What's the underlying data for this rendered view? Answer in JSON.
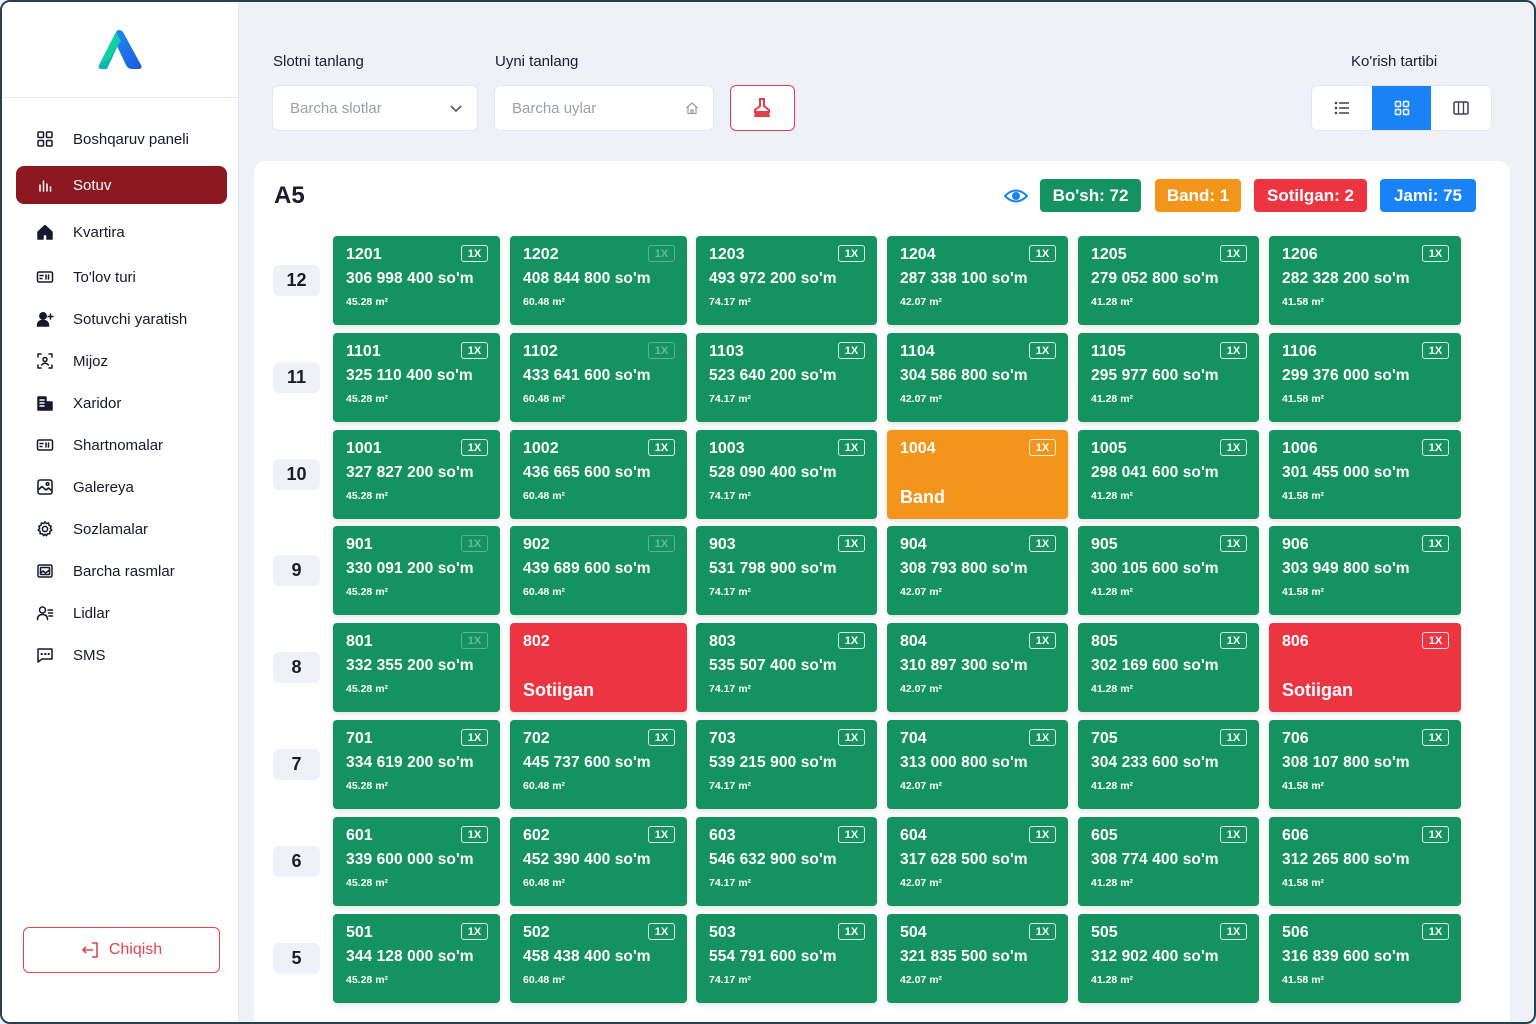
{
  "sidebar": {
    "items": [
      {
        "label": "Boshqaruv paneli",
        "icon": "dashboard-icon",
        "active": false
      },
      {
        "label": "Sotuv",
        "icon": "bar-chart-icon",
        "active": true
      },
      {
        "label": "Kvartira",
        "icon": "home-icon",
        "active": false
      },
      {
        "label": "To'lov turi",
        "icon": "payment-card-icon",
        "active": false
      },
      {
        "label": "Sotuvchi yaratish",
        "icon": "add-user-icon",
        "active": false
      },
      {
        "label": "Mijoz",
        "icon": "scan-user-icon",
        "active": false
      },
      {
        "label": "Xaridor",
        "icon": "buyer-building-icon",
        "active": false
      },
      {
        "label": "Shartnomalar",
        "icon": "contract-card-icon",
        "active": false
      },
      {
        "label": "Galereya",
        "icon": "gallery-icon",
        "active": false
      },
      {
        "label": "Sozlamalar",
        "icon": "gear-icon",
        "active": false
      },
      {
        "label": "Barcha rasmlar",
        "icon": "images-icon",
        "active": false
      },
      {
        "label": "Lidlar",
        "icon": "leads-icon",
        "active": false
      },
      {
        "label": "SMS",
        "icon": "sms-icon",
        "active": false
      }
    ],
    "logout_label": "Chiqish"
  },
  "filters": {
    "slot_label": "Slotni tanlang",
    "slot_placeholder": "Barcha slotlar",
    "house_label": "Uyni tanlang",
    "house_placeholder": "Barcha uylar",
    "view_label": "Ko'rish tartibi"
  },
  "block": {
    "title": "A5",
    "badges": {
      "free": "Bo'sh: 72",
      "reserved": "Band: 1",
      "sold": "Sotilgan: 2",
      "total": "Jami: 75"
    }
  },
  "colors": {
    "free": "#14925f",
    "reserved": "#f3941b",
    "sold": "#ec3540",
    "total": "#1a82f7",
    "active_nav": "#8b1820"
  },
  "floors": [
    {
      "floor": "12",
      "units": [
        {
          "num": "1201",
          "price": "306 998 400 so'm",
          "area": "45.28 m²",
          "status": "free",
          "tag": "1X",
          "tag_dim": false
        },
        {
          "num": "1202",
          "price": "408 844 800 so'm",
          "area": "60.48 m²",
          "status": "free",
          "tag": "1X",
          "tag_dim": true
        },
        {
          "num": "1203",
          "price": "493 972 200 so'm",
          "area": "74.17 m²",
          "status": "free",
          "tag": "1X",
          "tag_dim": false
        },
        {
          "num": "1204",
          "price": "287 338 100 so'm",
          "area": "42.07 m²",
          "status": "free",
          "tag": "1X",
          "tag_dim": false
        },
        {
          "num": "1205",
          "price": "279 052 800 so'm",
          "area": "41.28 m²",
          "status": "free",
          "tag": "1X",
          "tag_dim": false
        },
        {
          "num": "1206",
          "price": "282 328 200 so'm",
          "area": "41.58 m²",
          "status": "free",
          "tag": "1X",
          "tag_dim": false
        }
      ]
    },
    {
      "floor": "11",
      "units": [
        {
          "num": "1101",
          "price": "325 110 400 so'm",
          "area": "45.28 m²",
          "status": "free",
          "tag": "1X",
          "tag_dim": false
        },
        {
          "num": "1102",
          "price": "433 641 600 so'm",
          "area": "60.48 m²",
          "status": "free",
          "tag": "1X",
          "tag_dim": true
        },
        {
          "num": "1103",
          "price": "523 640 200 so'm",
          "area": "74.17 m²",
          "status": "free",
          "tag": "1X",
          "tag_dim": false
        },
        {
          "num": "1104",
          "price": "304 586 800 so'm",
          "area": "42.07 m²",
          "status": "free",
          "tag": "1X",
          "tag_dim": false
        },
        {
          "num": "1105",
          "price": "295 977 600 so'm",
          "area": "41.28 m²",
          "status": "free",
          "tag": "1X",
          "tag_dim": false
        },
        {
          "num": "1106",
          "price": "299 376 000 so'm",
          "area": "41.58 m²",
          "status": "free",
          "tag": "1X",
          "tag_dim": false
        }
      ]
    },
    {
      "floor": "10",
      "units": [
        {
          "num": "1001",
          "price": "327 827 200 so'm",
          "area": "45.28 m²",
          "status": "free",
          "tag": "1X",
          "tag_dim": false
        },
        {
          "num": "1002",
          "price": "436 665 600 so'm",
          "area": "60.48 m²",
          "status": "free",
          "tag": "1X",
          "tag_dim": false
        },
        {
          "num": "1003",
          "price": "528 090 400 so'm",
          "area": "74.17 m²",
          "status": "free",
          "tag": "1X",
          "tag_dim": false
        },
        {
          "num": "1004",
          "status_label": "Band",
          "status": "reserved",
          "tag": "1X",
          "tag_dim": false
        },
        {
          "num": "1005",
          "price": "298 041 600 so'm",
          "area": "41.28 m²",
          "status": "free",
          "tag": "1X",
          "tag_dim": false
        },
        {
          "num": "1006",
          "price": "301 455 000 so'm",
          "area": "41.58 m²",
          "status": "free",
          "tag": "1X",
          "tag_dim": false
        }
      ]
    },
    {
      "floor": "9",
      "units": [
        {
          "num": "901",
          "price": "330 091 200 so'm",
          "area": "45.28 m²",
          "status": "free",
          "tag": "1X",
          "tag_dim": true
        },
        {
          "num": "902",
          "price": "439 689 600 so'm",
          "area": "60.48 m²",
          "status": "free",
          "tag": "1X",
          "tag_dim": true
        },
        {
          "num": "903",
          "price": "531 798 900 so'm",
          "area": "74.17 m²",
          "status": "free",
          "tag": "1X",
          "tag_dim": false
        },
        {
          "num": "904",
          "price": "308 793 800 so'm",
          "area": "42.07 m²",
          "status": "free",
          "tag": "1X",
          "tag_dim": false
        },
        {
          "num": "905",
          "price": "300 105 600 so'm",
          "area": "41.28 m²",
          "status": "free",
          "tag": "1X",
          "tag_dim": false
        },
        {
          "num": "906",
          "price": "303 949 800 so'm",
          "area": "41.58 m²",
          "status": "free",
          "tag": "1X",
          "tag_dim": false
        }
      ]
    },
    {
      "floor": "8",
      "units": [
        {
          "num": "801",
          "price": "332 355 200 so'm",
          "area": "45.28 m²",
          "status": "free",
          "tag": "1X",
          "tag_dim": true
        },
        {
          "num": "802",
          "status_label": "Sotiigan",
          "status": "sold",
          "tag": "",
          "tag_dim": false
        },
        {
          "num": "803",
          "price": "535 507 400 so'm",
          "area": "74.17 m²",
          "status": "free",
          "tag": "1X",
          "tag_dim": false
        },
        {
          "num": "804",
          "price": "310 897 300 so'm",
          "area": "42.07 m²",
          "status": "free",
          "tag": "1X",
          "tag_dim": false
        },
        {
          "num": "805",
          "price": "302 169 600 so'm",
          "area": "41.28 m²",
          "status": "free",
          "tag": "1X",
          "tag_dim": false
        },
        {
          "num": "806",
          "status_label": "Sotiigan",
          "status": "sold",
          "tag": "1X",
          "tag_dim": false
        }
      ]
    },
    {
      "floor": "7",
      "units": [
        {
          "num": "701",
          "price": "334 619 200 so'm",
          "area": "45.28 m²",
          "status": "free",
          "tag": "1X",
          "tag_dim": false
        },
        {
          "num": "702",
          "price": "445 737 600 so'm",
          "area": "60.48 m²",
          "status": "free",
          "tag": "1X",
          "tag_dim": false
        },
        {
          "num": "703",
          "price": "539 215 900 so'm",
          "area": "74.17 m²",
          "status": "free",
          "tag": "1X",
          "tag_dim": false
        },
        {
          "num": "704",
          "price": "313 000 800 so'm",
          "area": "42.07 m²",
          "status": "free",
          "tag": "1X",
          "tag_dim": false
        },
        {
          "num": "705",
          "price": "304 233 600 so'm",
          "area": "41.28 m²",
          "status": "free",
          "tag": "1X",
          "tag_dim": false
        },
        {
          "num": "706",
          "price": "308 107 800 so'm",
          "area": "41.58 m²",
          "status": "free",
          "tag": "1X",
          "tag_dim": false
        }
      ]
    },
    {
      "floor": "6",
      "units": [
        {
          "num": "601",
          "price": "339 600 000 so'm",
          "area": "45.28 m²",
          "status": "free",
          "tag": "1X",
          "tag_dim": false
        },
        {
          "num": "602",
          "price": "452 390 400 so'm",
          "area": "60.48 m²",
          "status": "free",
          "tag": "1X",
          "tag_dim": false
        },
        {
          "num": "603",
          "price": "546 632 900 so'm",
          "area": "74.17 m²",
          "status": "free",
          "tag": "1X",
          "tag_dim": false
        },
        {
          "num": "604",
          "price": "317 628 500 so'm",
          "area": "42.07 m²",
          "status": "free",
          "tag": "1X",
          "tag_dim": false
        },
        {
          "num": "605",
          "price": "308 774 400 so'm",
          "area": "41.28 m²",
          "status": "free",
          "tag": "1X",
          "tag_dim": false
        },
        {
          "num": "606",
          "price": "312 265 800 so'm",
          "area": "41.58 m²",
          "status": "free",
          "tag": "1X",
          "tag_dim": false
        }
      ]
    },
    {
      "floor": "5",
      "units": [
        {
          "num": "501",
          "price": "344 128 000 so'm",
          "area": "45.28 m²",
          "status": "free",
          "tag": "1X",
          "tag_dim": false
        },
        {
          "num": "502",
          "price": "458 438 400 so'm",
          "area": "60.48 m²",
          "status": "free",
          "tag": "1X",
          "tag_dim": false
        },
        {
          "num": "503",
          "price": "554 791 600 so'm",
          "area": "74.17 m²",
          "status": "free",
          "tag": "1X",
          "tag_dim": false
        },
        {
          "num": "504",
          "price": "321 835 500 so'm",
          "area": "42.07 m²",
          "status": "free",
          "tag": "1X",
          "tag_dim": false
        },
        {
          "num": "505",
          "price": "312 902 400 so'm",
          "area": "41.28 m²",
          "status": "free",
          "tag": "1X",
          "tag_dim": false
        },
        {
          "num": "506",
          "price": "316 839 600 so'm",
          "area": "41.58 m²",
          "status": "free",
          "tag": "1X",
          "tag_dim": false
        }
      ]
    }
  ]
}
